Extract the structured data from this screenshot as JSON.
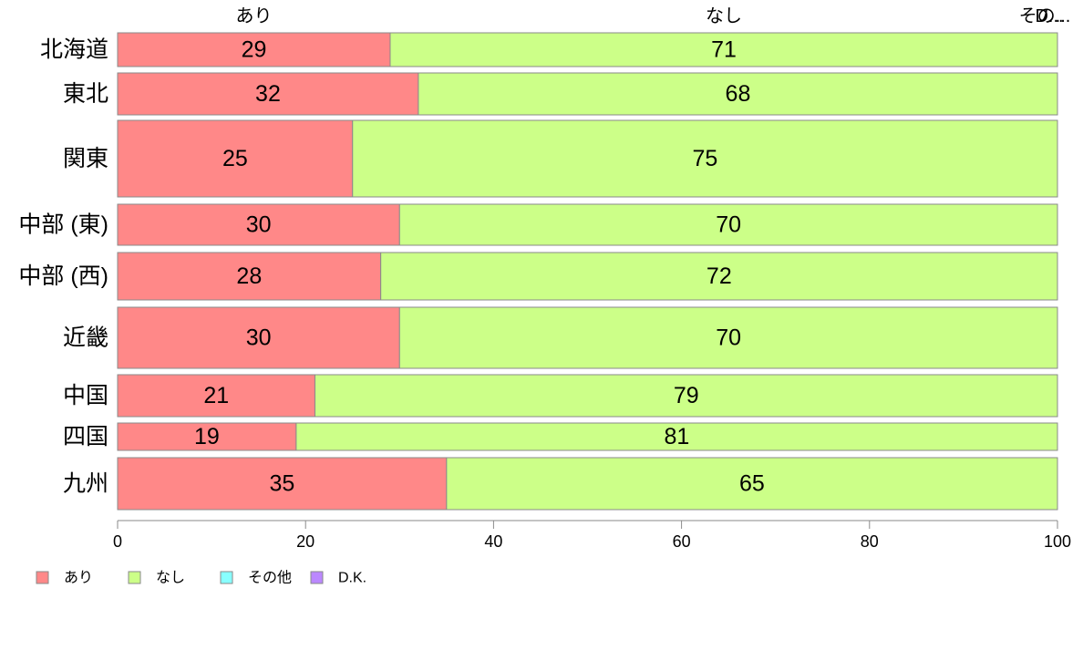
{
  "chart_data": {
    "type": "bar",
    "orientation": "horizontal",
    "stacked": true,
    "categories": [
      "北海道",
      "東北",
      "関東",
      "中部 (東)",
      "中部 (西)",
      "近畿",
      "中国",
      "四国",
      "九州"
    ],
    "series": [
      {
        "name": "あり",
        "color": "#ff8888",
        "values": [
          29,
          32,
          25,
          30,
          28,
          30,
          21,
          19,
          35
        ]
      },
      {
        "name": "なし",
        "color": "#ccff88",
        "values": [
          71,
          68,
          75,
          70,
          72,
          70,
          79,
          81,
          65
        ]
      },
      {
        "name": "その他",
        "color": "#88ffff",
        "values": [
          0,
          0,
          0,
          0,
          0,
          0,
          0,
          0,
          0
        ]
      },
      {
        "name": "D.K.",
        "color": "#bb88ff",
        "values": [
          0,
          0,
          0,
          0,
          0,
          0,
          0,
          0,
          0
        ]
      }
    ],
    "top_labels": [
      "あり",
      "なし",
      "その...",
      "D..."
    ],
    "xlim": [
      0,
      100
    ],
    "xticks": [
      0,
      20,
      40,
      60,
      80,
      100
    ],
    "legend": "bottom-left",
    "grid": false
  }
}
